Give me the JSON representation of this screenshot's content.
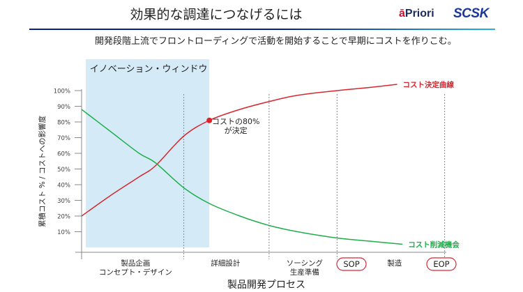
{
  "header": {
    "title": "効果的な調達につなげるには",
    "subtitle": "開発段階上流でフロントローディングで活動を開始することで早期にコストを作りこむ。",
    "logos": [
      {
        "name": "aPriori",
        "text_accent": "ā",
        "text": "Priori"
      },
      {
        "name": "SCSK",
        "text": "SCSK"
      }
    ]
  },
  "colors": {
    "cost_curve": "#d7262f",
    "opportunity_curve": "#1fae4b",
    "innovation_window": "#d4ebf7",
    "rule_start": "#0a1f8a",
    "rule_end": "#2ab0e0"
  },
  "chart_data": {
    "type": "line",
    "title": "",
    "ylabel": "累積コスト % / コストへの影響度",
    "xlabel": "製品開発プロセス",
    "ylim": [
      0,
      100
    ],
    "yticks": [
      "100%",
      "90%",
      "80%",
      "70%",
      "60%",
      "50%",
      "40%",
      "30%",
      "20%",
      "10%"
    ],
    "ytick_values": [
      100,
      90,
      80,
      70,
      60,
      50,
      40,
      30,
      20,
      10
    ],
    "x_range": [
      0,
      100
    ],
    "phases": [
      {
        "label_lines": [
          "製品企画",
          "コンセプト・デザイン"
        ],
        "x_center": 15,
        "boxed": false
      },
      {
        "label_lines": [
          "詳細設計"
        ],
        "x_center": 40,
        "boxed": false
      },
      {
        "label_lines": [
          "ソーシング",
          "生産準備"
        ],
        "x_center": 62,
        "boxed": false
      },
      {
        "label_lines": [
          "SOP"
        ],
        "x_center": 75,
        "boxed": true
      },
      {
        "label_lines": [
          "製造"
        ],
        "x_center": 87,
        "boxed": false
      },
      {
        "label_lines": [
          "EOP"
        ],
        "x_center": 100,
        "boxed": true
      }
    ],
    "phase_dividers_x": [
      28.4,
      52.1,
      71.0,
      100.9
    ],
    "shaded_region": {
      "label": "イノベーション・ウィンドウ",
      "x_start": 0.6,
      "x_end": 35.5
    },
    "series": [
      {
        "name": "コスト決定曲線",
        "color": "#d7262f",
        "x": [
          0,
          8,
          16,
          20.5,
          28.4,
          35.5,
          44,
          52.1,
          60,
          71,
          80,
          87.7
        ],
        "y": [
          20,
          33,
          45,
          52,
          71,
          81,
          88,
          93,
          97,
          100,
          102,
          104
        ]
      },
      {
        "name": "コスト削減機会",
        "color": "#1fae4b",
        "x": [
          0,
          8,
          16,
          20.5,
          28.4,
          35.5,
          44,
          52.1,
          60,
          71,
          80,
          89.2
        ],
        "y": [
          88,
          74,
          60,
          54,
          38,
          28,
          20,
          14,
          10,
          6,
          4,
          2
        ]
      }
    ],
    "annotations": [
      {
        "text_lines": [
          "コストの80%",
          "が決定"
        ],
        "series": "コスト決定曲線",
        "x": 35.5,
        "y": 81,
        "marker": "dot"
      }
    ],
    "legend": "inline-right",
    "grid": false
  }
}
